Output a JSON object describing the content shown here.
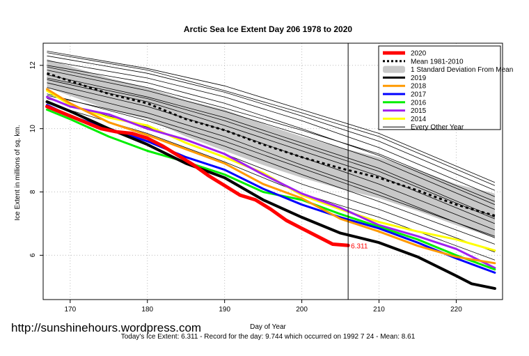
{
  "chart_data": {
    "type": "line",
    "title": "Arctic Sea Ice Extent Day 206 1978 to 2020",
    "xlabel": "Day of Year",
    "ylabel": "Ice Extent in millions of sq. km.",
    "xlim": [
      166.5,
      226
    ],
    "ylim": [
      4.6,
      12.7
    ],
    "x_ticks": [
      170,
      180,
      190,
      200,
      210,
      220
    ],
    "x_tick_labels": [
      "170",
      "180",
      "190",
      "200",
      "210",
      "220"
    ],
    "y_ticks": [
      6,
      8,
      10,
      12
    ],
    "y_tick_labels": [
      "6",
      "8",
      "10",
      "12"
    ],
    "grid": true,
    "current_day": 206,
    "current_value_label": "6.311",
    "legend_position": "top-right",
    "legend": [
      {
        "label": "2020",
        "color": "#ff0000",
        "style": "solid-thick"
      },
      {
        "label": "Mean 1981-2010",
        "color": "#000000",
        "style": "dotted"
      },
      {
        "label": "1 Standard Deviation From Mean",
        "color": "#c8c8c8",
        "style": "band"
      },
      {
        "label": "2019",
        "color": "#000000",
        "style": "solid"
      },
      {
        "label": "2018",
        "color": "#ff9900",
        "style": "solid"
      },
      {
        "label": "2017",
        "color": "#0000ff",
        "style": "solid"
      },
      {
        "label": "2016",
        "color": "#00ee00",
        "style": "solid"
      },
      {
        "label": "2015",
        "color": "#a020f0",
        "style": "solid"
      },
      {
        "label": "2014",
        "color": "#ffff00",
        "style": "solid"
      },
      {
        "label": "Every Other Year",
        "color": "#000000",
        "style": "thin"
      }
    ],
    "mean": {
      "x": [
        167,
        175,
        180,
        185,
        190,
        195,
        200,
        205,
        210,
        215,
        220,
        225
      ],
      "y": [
        11.75,
        11.1,
        10.8,
        10.3,
        9.95,
        9.5,
        9.1,
        8.75,
        8.45,
        8.05,
        7.6,
        7.25
      ]
    },
    "std_band": {
      "x": [
        167,
        175,
        180,
        185,
        190,
        195,
        200,
        205,
        210,
        215,
        220,
        225
      ],
      "upper": [
        12.2,
        11.6,
        11.3,
        10.9,
        10.6,
        10.15,
        9.75,
        9.4,
        9.1,
        8.7,
        8.25,
        7.95
      ],
      "lower": [
        11.3,
        10.6,
        10.3,
        9.75,
        9.3,
        8.85,
        8.45,
        8.1,
        7.8,
        7.4,
        6.95,
        6.55
      ]
    },
    "series": [
      {
        "name": "2020",
        "color": "#ff0000",
        "width": 5,
        "x": [
          167,
          170,
          172,
          174,
          176,
          178,
          180,
          182,
          184,
          186,
          188,
          190,
          192,
          194,
          196,
          198,
          200,
          202,
          204,
          206
        ],
        "y": [
          10.7,
          10.4,
          10.2,
          10.0,
          9.9,
          9.85,
          9.7,
          9.45,
          9.15,
          8.85,
          8.5,
          8.2,
          7.9,
          7.75,
          7.45,
          7.1,
          6.85,
          6.6,
          6.35,
          6.31
        ]
      },
      {
        "name": "2019",
        "color": "#000000",
        "width": 4,
        "x": [
          167,
          170,
          175,
          180,
          185,
          190,
          195,
          200,
          205,
          210,
          215,
          220,
          222,
          225
        ],
        "y": [
          10.85,
          10.55,
          10.0,
          9.5,
          8.9,
          8.45,
          7.75,
          7.2,
          6.7,
          6.4,
          5.95,
          5.35,
          5.1,
          4.95
        ]
      },
      {
        "name": "2018",
        "color": "#ff9900",
        "width": 3,
        "x": [
          167,
          170,
          175,
          180,
          185,
          190,
          195,
          200,
          205,
          210,
          215,
          220,
          225
        ],
        "y": [
          11.25,
          10.8,
          10.2,
          9.8,
          9.35,
          8.9,
          8.25,
          7.8,
          7.15,
          6.75,
          6.3,
          5.95,
          5.75
        ]
      },
      {
        "name": "2017",
        "color": "#0000ff",
        "width": 3,
        "x": [
          167,
          170,
          175,
          180,
          185,
          190,
          195,
          200,
          205,
          210,
          215,
          220,
          225
        ],
        "y": [
          10.75,
          10.4,
          10.0,
          9.6,
          9.1,
          8.7,
          8.1,
          7.6,
          7.2,
          6.85,
          6.4,
          5.9,
          5.45
        ]
      },
      {
        "name": "2016",
        "color": "#00ee00",
        "width": 3,
        "x": [
          167,
          170,
          175,
          180,
          185,
          190,
          195,
          200,
          205,
          210,
          215,
          220,
          225
        ],
        "y": [
          10.6,
          10.3,
          9.75,
          9.3,
          8.95,
          8.55,
          8.0,
          7.75,
          7.3,
          6.9,
          6.5,
          6.0,
          5.55
        ]
      },
      {
        "name": "2015",
        "color": "#a020f0",
        "width": 3,
        "x": [
          167,
          170,
          175,
          180,
          185,
          190,
          195,
          200,
          205,
          210,
          215,
          220,
          225
        ],
        "y": [
          11.0,
          10.7,
          10.45,
          10.0,
          9.65,
          9.2,
          8.55,
          7.95,
          7.5,
          6.95,
          6.6,
          6.2,
          5.6
        ]
      },
      {
        "name": "2014",
        "color": "#ffff00",
        "width": 3,
        "x": [
          167,
          170,
          175,
          180,
          185,
          190,
          195,
          200,
          205,
          210,
          215,
          220,
          225
        ],
        "y": [
          11.2,
          10.75,
          10.35,
          10.1,
          9.55,
          9.1,
          8.6,
          7.9,
          7.45,
          7.05,
          6.75,
          6.5,
          6.15
        ]
      }
    ],
    "other_years": [
      {
        "x": [
          167,
          180,
          190,
          200,
          210,
          225
        ],
        "y": [
          12.45,
          11.9,
          11.35,
          10.6,
          9.85,
          8.3
        ]
      },
      {
        "x": [
          167,
          180,
          190,
          200,
          210,
          225
        ],
        "y": [
          12.3,
          11.75,
          11.15,
          10.4,
          9.6,
          8.05
        ]
      },
      {
        "x": [
          167,
          180,
          190,
          200,
          210,
          225
        ],
        "y": [
          12.15,
          11.6,
          11.0,
          10.25,
          9.4,
          7.85
        ]
      },
      {
        "x": [
          167,
          180,
          190,
          200,
          210,
          225
        ],
        "y": [
          12.0,
          11.45,
          10.8,
          10.0,
          9.15,
          7.6
        ]
      },
      {
        "x": [
          167,
          180,
          190,
          200,
          210,
          225
        ],
        "y": [
          11.85,
          11.2,
          10.55,
          9.8,
          9.0,
          7.45
        ]
      },
      {
        "x": [
          167,
          180,
          190,
          200,
          210,
          225
        ],
        "y": [
          11.7,
          11.0,
          10.35,
          9.55,
          8.75,
          7.2
        ]
      },
      {
        "x": [
          167,
          180,
          190,
          200,
          210,
          225
        ],
        "y": [
          11.55,
          10.85,
          10.1,
          9.3,
          8.5,
          7.0
        ]
      },
      {
        "x": [
          167,
          180,
          190,
          200,
          210,
          225
        ],
        "y": [
          11.45,
          10.7,
          9.95,
          9.1,
          8.25,
          6.8
        ]
      },
      {
        "x": [
          167,
          180,
          190,
          200,
          210,
          225
        ],
        "y": [
          11.3,
          10.5,
          9.75,
          8.85,
          8.0,
          6.55
        ]
      },
      {
        "x": [
          167,
          180,
          190,
          200,
          210,
          225
        ],
        "y": [
          11.1,
          10.25,
          9.45,
          8.55,
          7.7,
          6.35
        ]
      },
      {
        "x": [
          167,
          180,
          190,
          200,
          210,
          225
        ],
        "y": [
          10.95,
          10.05,
          9.2,
          8.25,
          7.45,
          6.1
        ]
      },
      {
        "x": [
          167,
          180,
          190,
          200,
          210,
          225
        ],
        "y": [
          10.8,
          9.85,
          8.95,
          7.95,
          7.2,
          5.85
        ]
      },
      {
        "x": [
          167,
          180,
          190,
          200,
          210,
          225
        ],
        "y": [
          12.4,
          11.85,
          11.2,
          10.5,
          9.75,
          8.2
        ]
      },
      {
        "x": [
          167,
          180,
          190,
          200,
          210,
          225
        ],
        "y": [
          11.95,
          11.3,
          10.65,
          9.95,
          9.2,
          7.7
        ]
      },
      {
        "x": [
          167,
          180,
          190,
          200,
          210,
          225
        ],
        "y": [
          11.6,
          10.95,
          10.25,
          9.45,
          8.65,
          7.15
        ]
      },
      {
        "x": [
          167,
          180,
          190,
          200,
          210,
          225
        ],
        "y": [
          11.05,
          10.35,
          9.6,
          8.75,
          7.9,
          6.6
        ]
      }
    ]
  },
  "footer": {
    "watermark": "http://sunshinehours.wordpress.com",
    "summary": "Today's Ice Extent: 6.311  - Record for the day: 9.744 which occurred on 1992 7 24  - Mean: 8.61"
  }
}
